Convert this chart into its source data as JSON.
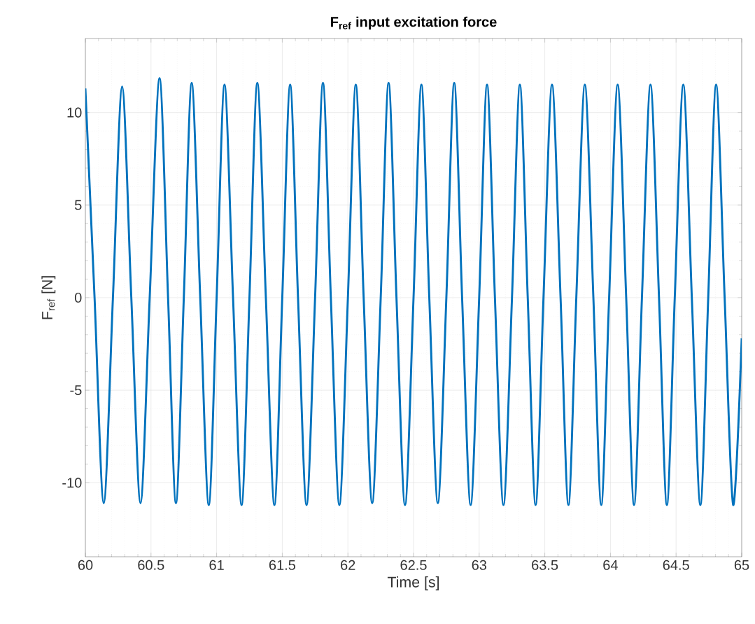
{
  "chart_data": {
    "type": "line",
    "title": "F$_{ref}$  input excitation force",
    "xlabel": "Time [s]",
    "ylabel": "F$_{ref}$   [N]",
    "x": [
      60.0,
      60.07,
      60.14,
      60.21,
      60.28,
      60.35,
      60.42,
      60.49,
      60.565,
      60.63,
      60.69,
      60.75,
      60.81,
      60.875,
      60.94,
      61.0,
      61.06,
      61.125,
      61.19,
      61.25,
      61.31,
      61.375,
      61.44,
      61.5,
      61.56,
      61.62,
      61.685,
      61.75,
      61.81,
      61.87,
      61.935,
      62.0,
      62.06,
      62.12,
      62.185,
      62.25,
      62.31,
      62.37,
      62.435,
      62.5,
      62.56,
      62.62,
      62.685,
      62.75,
      62.81,
      62.87,
      62.935,
      63.0,
      63.06,
      63.12,
      63.185,
      63.25,
      63.31,
      63.37,
      63.43,
      63.49,
      63.555,
      63.62,
      63.68,
      63.74,
      63.805,
      63.87,
      63.93,
      63.99,
      64.055,
      64.12,
      64.18,
      64.24,
      64.305,
      64.37,
      64.43,
      64.49,
      64.555,
      64.62,
      64.685,
      64.745,
      64.805,
      64.87,
      64.935,
      65.0
    ],
    "values": [
      11.3,
      0,
      -11.1,
      0,
      11.4,
      0,
      -11.1,
      0,
      11.85,
      0,
      -11.1,
      0,
      11.6,
      0,
      -11.2,
      0,
      11.5,
      0,
      -11.2,
      0,
      11.6,
      0,
      -11.2,
      0,
      11.5,
      0,
      -11.2,
      0,
      11.6,
      0,
      -11.2,
      0,
      11.5,
      0,
      -11.1,
      0,
      11.6,
      0,
      -11.2,
      0,
      11.5,
      0,
      -11.1,
      0,
      11.6,
      0,
      -11.2,
      0,
      11.5,
      0,
      -11.2,
      0,
      11.5,
      0,
      -11.2,
      0,
      11.5,
      0,
      -11.2,
      0,
      11.5,
      0,
      -11.2,
      0,
      11.5,
      0,
      -11.2,
      0,
      11.5,
      0,
      -11.2,
      0,
      11.5,
      0,
      -11.2,
      0,
      11.5,
      0,
      -11.2,
      -2.2
    ],
    "color": "#0072bd",
    "line_style": "solid",
    "xlim": [
      60,
      65
    ],
    "ylim": [
      -14,
      14
    ],
    "xticks": [
      60,
      60.5,
      61,
      61.5,
      62,
      62.5,
      63,
      63.5,
      64,
      64.5,
      65
    ],
    "yticks": [
      -10,
      -5,
      0,
      5,
      10
    ],
    "grid": true
  }
}
